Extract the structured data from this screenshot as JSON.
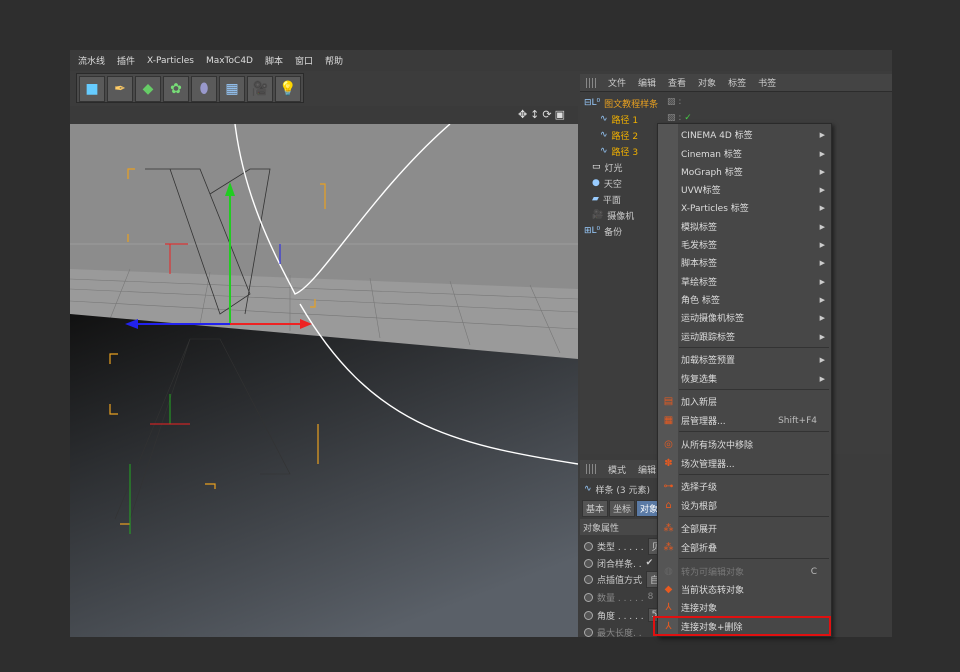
{
  "menubar": [
    "流水线",
    "插件",
    "X-Particles",
    "MaxToC4D",
    "脚本",
    "窗口",
    "帮助"
  ],
  "toolbar_icons": [
    "cube-icon",
    "pen-icon",
    "subdivision-icon",
    "cloner-icon",
    "deformer-icon",
    "floor-icon",
    "camera-icon",
    "light-icon"
  ],
  "object_manager": {
    "menu": [
      "文件",
      "编辑",
      "查看",
      "对象",
      "标签",
      "书签"
    ],
    "objects": [
      {
        "name": "图文教程样条",
        "level": 0,
        "icon": "null-icon"
      },
      {
        "name": "路径 1",
        "level": 1,
        "icon": "spline-icon"
      },
      {
        "name": "路径 2",
        "level": 1,
        "icon": "spline-icon"
      },
      {
        "name": "路径 3",
        "level": 1,
        "icon": "spline-icon"
      },
      {
        "name": "灯光",
        "level": 0,
        "icon": "light-icon"
      },
      {
        "name": "天空",
        "level": 0,
        "icon": "sky-icon"
      },
      {
        "name": "平面",
        "level": 0,
        "icon": "plane-icon"
      },
      {
        "name": "摄像机",
        "level": 0,
        "icon": "camera-icon"
      },
      {
        "name": "备份",
        "level": 0,
        "icon": "null-icon"
      }
    ]
  },
  "attributes": {
    "menu": [
      "模式",
      "编辑"
    ],
    "title": "样条 (3 元素)",
    "tabs": [
      "基本",
      "坐标",
      "对象"
    ],
    "section": "对象属性",
    "rows": [
      {
        "label": "类型 . . . . .",
        "value": "贝"
      },
      {
        "label": "闭合样条. .",
        "value": "✔"
      },
      {
        "label": "点插值方式",
        "value": "自"
      },
      {
        "label": "数量 . . . . .",
        "value": "8"
      },
      {
        "label": "角度 . . . . .",
        "value": "5"
      },
      {
        "label": "最大长度. .",
        "value": ""
      }
    ]
  },
  "context_menu": {
    "items": [
      {
        "label": "CINEMA 4D 标签",
        "submenu": true
      },
      {
        "label": "Cineman 标签",
        "submenu": true
      },
      {
        "label": "MoGraph 标签",
        "submenu": true
      },
      {
        "label": "UVW标签",
        "submenu": true
      },
      {
        "label": "X-Particles 标签",
        "submenu": true
      },
      {
        "label": "模拟标签",
        "submenu": true
      },
      {
        "label": "毛发标签",
        "submenu": true
      },
      {
        "label": "脚本标签",
        "submenu": true
      },
      {
        "label": "草绘标签",
        "submenu": true
      },
      {
        "label": "角色 标签",
        "submenu": true
      },
      {
        "label": "运动摄像机标签",
        "submenu": true
      },
      {
        "label": "运动跟踪标签",
        "submenu": true
      },
      {
        "label": "加载标签预置",
        "submenu": true
      },
      {
        "label": "恢复选集",
        "submenu": true
      },
      {
        "label": "加入新层",
        "icon": "layer-add-icon"
      },
      {
        "label": "层管理器...",
        "shortcut": "Shift+F4",
        "icon": "layer-manager-icon"
      },
      {
        "label": "从所有场次中移除",
        "icon": "take-remove-icon"
      },
      {
        "label": "场次管理器...",
        "icon": "take-manager-icon"
      },
      {
        "label": "选择子级",
        "icon": "select-children-icon"
      },
      {
        "label": "设为根部",
        "icon": "set-root-icon"
      },
      {
        "label": "全部展开",
        "icon": "expand-all-icon"
      },
      {
        "label": "全部折叠",
        "icon": "collapse-all-icon"
      },
      {
        "label": "转为可编辑对象",
        "shortcut": "C",
        "disabled": true,
        "icon": "make-editable-icon"
      },
      {
        "label": "当前状态转对象",
        "icon": "current-state-icon"
      },
      {
        "label": "连接对象",
        "icon": "connect-icon"
      },
      {
        "label": "连接对象+删除",
        "icon": "connect-delete-icon",
        "highlighted": true
      }
    ]
  },
  "colors": {
    "highlight_box": "#e01010",
    "selected_text": "#f0b000"
  }
}
